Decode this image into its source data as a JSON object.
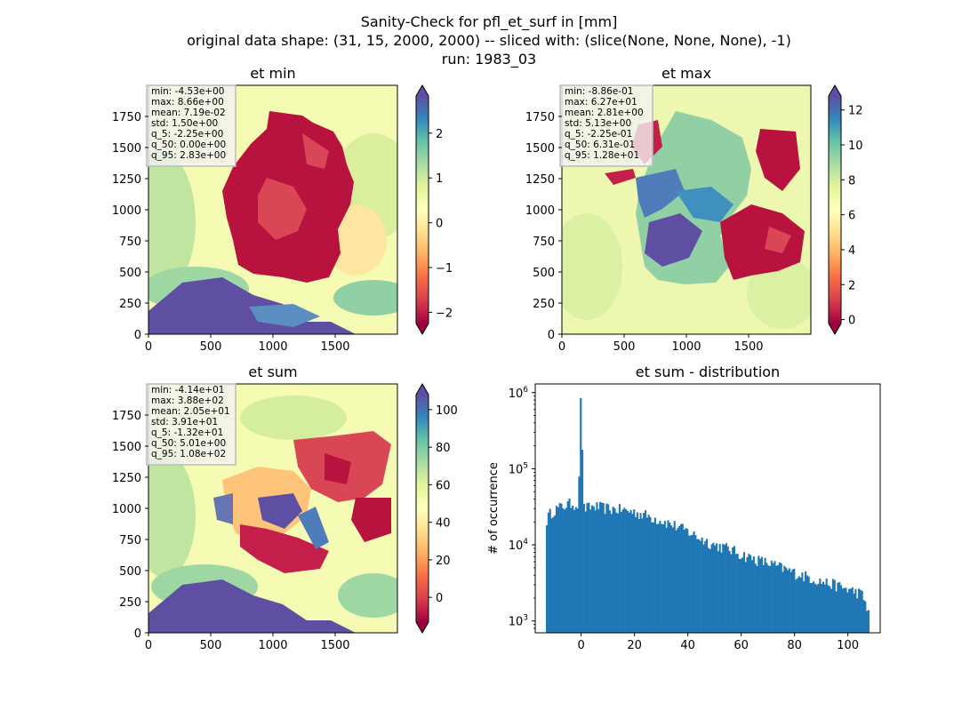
{
  "figure": {
    "title_lines": [
      "Sanity-Check for pfl_et_surf in [mm]",
      "original data shape: (31, 15, 2000, 2000) -- sliced with: (slice(None, None, None), -1)",
      "run: 1983_03"
    ]
  },
  "chart_data": [
    {
      "type": "heatmap",
      "title": "et min",
      "xlim": [
        0,
        2000
      ],
      "ylim": [
        0,
        2000
      ],
      "x_ticks": [
        "0",
        "500",
        "1000",
        "1500"
      ],
      "y_ticks": [
        "0",
        "250",
        "500",
        "750",
        "1000",
        "1250",
        "1500",
        "1750"
      ],
      "colorbar": {
        "colormap": "Spectral",
        "range": [
          -2.25,
          2.83
        ],
        "ticks": [
          "2",
          "1",
          "0",
          "−1",
          "−2"
        ],
        "tick_values": [
          2,
          1,
          0,
          -1,
          -2
        ],
        "extend": "both"
      },
      "stats": [
        "min: -4.53e+00",
        "max: 8.66e+00",
        "mean: 7.19e-02",
        "std: 1.50e+00",
        "q_5: -2.25e+00",
        "q_50: 0.00e+00",
        "q_95: 2.83e+00"
      ]
    },
    {
      "type": "heatmap",
      "title": "et max",
      "xlim": [
        0,
        2000
      ],
      "ylim": [
        0,
        2000
      ],
      "x_ticks": [
        "0",
        "500",
        "1000",
        "1500"
      ],
      "y_ticks": [
        "0",
        "250",
        "500",
        "750",
        "1000",
        "1250",
        "1500",
        "1750"
      ],
      "colorbar": {
        "colormap": "Spectral",
        "range": [
          -0.225,
          12.8
        ],
        "ticks": [
          "12",
          "10",
          "8",
          "6",
          "4",
          "2",
          "0"
        ],
        "tick_values": [
          12,
          10,
          8,
          6,
          4,
          2,
          0
        ],
        "extend": "both"
      },
      "stats": [
        "min: -8.86e-01",
        "max: 6.27e+01",
        "mean: 2.81e+00",
        "std: 5.13e+00",
        "q_5: -2.25e-01",
        "q_50: 6.31e-01",
        "q_95: 1.28e+01"
      ]
    },
    {
      "type": "heatmap",
      "title": "et sum",
      "xlim": [
        0,
        2000
      ],
      "ylim": [
        0,
        2000
      ],
      "x_ticks": [
        "0",
        "500",
        "1000",
        "1500"
      ],
      "y_ticks": [
        "0",
        "250",
        "500",
        "750",
        "1000",
        "1250",
        "1500",
        "1750"
      ],
      "colorbar": {
        "colormap": "Spectral",
        "range": [
          -13.2,
          108
        ],
        "ticks": [
          "100",
          "80",
          "60",
          "40",
          "20",
          "0"
        ],
        "tick_values": [
          100,
          80,
          60,
          40,
          20,
          0
        ],
        "extend": "both"
      },
      "stats": [
        "min: -4.14e+01",
        "max: 3.88e+02",
        "mean: 2.05e+01",
        "std: 3.91e+01",
        "q_5: -1.32e+01",
        "q_50: 5.01e+00",
        "q_95: 1.08e+02"
      ]
    },
    {
      "type": "bar",
      "title": "et sum - distribution",
      "xlabel": "",
      "ylabel": "# of occurrence",
      "yscale": "log",
      "xlim": [
        -17.2,
        112.1
      ],
      "ylim": [
        700,
        1300000
      ],
      "x_ticks": [
        "0",
        "20",
        "40",
        "60",
        "80",
        "100"
      ],
      "x_tick_values": [
        0,
        20,
        40,
        60,
        80,
        100
      ],
      "y_ticks": [
        {
          "base": "10",
          "exp": "3",
          "value": 1000
        },
        {
          "base": "10",
          "exp": "4",
          "value": 10000
        },
        {
          "base": "10",
          "exp": "5",
          "value": 100000
        },
        {
          "base": "10",
          "exp": "6",
          "value": 1000000
        }
      ],
      "bar_color": "#1f77b4",
      "bin_range": [
        -13.2,
        108
      ],
      "anchors": [
        [
          -13.2,
          20000
        ],
        [
          -12,
          25000
        ],
        [
          -10,
          29000
        ],
        [
          -7,
          32000
        ],
        [
          -4,
          35000
        ],
        [
          -1,
          34000
        ],
        [
          0,
          850000
        ],
        [
          1,
          30000
        ],
        [
          5,
          32000
        ],
        [
          10,
          30000
        ],
        [
          15,
          29000
        ],
        [
          20,
          27000
        ],
        [
          25,
          24000
        ],
        [
          30,
          21000
        ],
        [
          35,
          18000
        ],
        [
          40,
          15000
        ],
        [
          45,
          12000
        ],
        [
          50,
          10000
        ],
        [
          55,
          9000
        ],
        [
          60,
          7500
        ],
        [
          65,
          6500
        ],
        [
          70,
          5800
        ],
        [
          75,
          5000
        ],
        [
          80,
          4300
        ],
        [
          85,
          3800
        ],
        [
          90,
          3300
        ],
        [
          95,
          3000
        ],
        [
          100,
          2600
        ],
        [
          105,
          2300
        ],
        [
          108,
          1300
        ]
      ]
    }
  ]
}
